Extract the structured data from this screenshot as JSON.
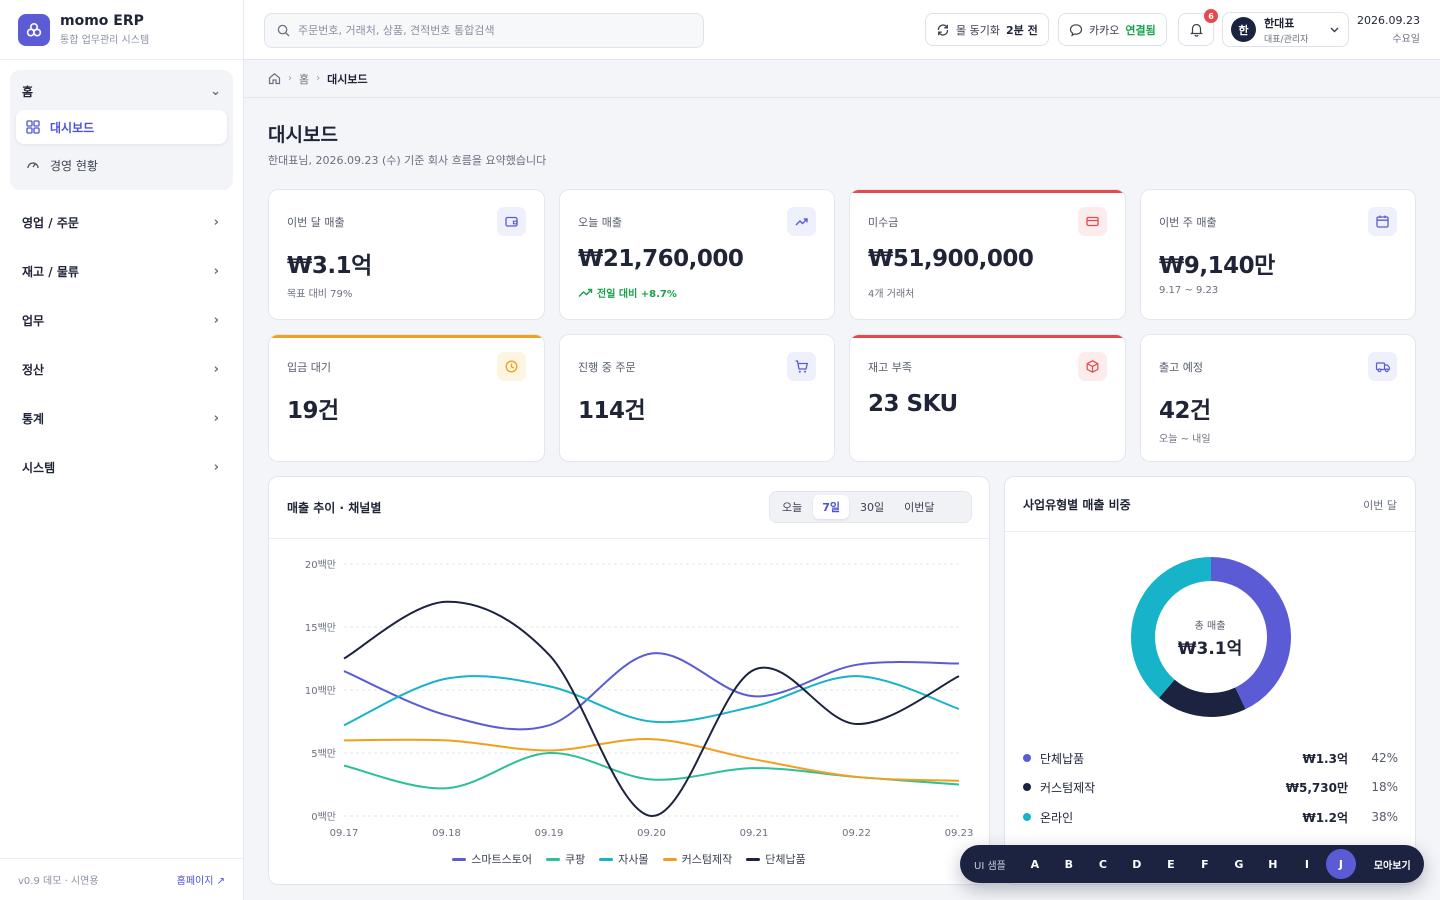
{
  "brand": {
    "name": "momo ERP",
    "subtitle": "통합 업무관리 시스템"
  },
  "sidebar": {
    "home_group": {
      "label": "홈",
      "items": [
        {
          "label": "대시보드",
          "active": true
        },
        {
          "label": "경영 현황",
          "active": false
        }
      ]
    },
    "groups": [
      {
        "label": "영업 / 주문"
      },
      {
        "label": "재고 / 물류"
      },
      {
        "label": "업무"
      },
      {
        "label": "정산"
      },
      {
        "label": "통계"
      },
      {
        "label": "시스템"
      }
    ],
    "footer": {
      "version": "v0.9 데모 · 시연용",
      "homepage": "홈페이지 ↗"
    }
  },
  "topbar": {
    "search_placeholder": "주문번호, 거래처, 상품, 견적번호 통합검색",
    "sync": {
      "label": "몰 동기화",
      "value": "2분 전"
    },
    "kakao": {
      "label": "카카오",
      "value": "연결됨"
    },
    "notifications": "6",
    "user": {
      "initial": "한",
      "name": "한대표",
      "role": "대표/관리자"
    },
    "date": "2026.09.23",
    "weekday": "수요일"
  },
  "breadcrumb": {
    "home": "홈",
    "current": "대시보드"
  },
  "page": {
    "title": "대시보드",
    "subtitle": "한대표님, 2026.09.23 (수) 기준 회사 흐름을 요약했습니다"
  },
  "kpis": [
    {
      "label": "이번 달 매출",
      "value": "₩3.1억",
      "sub": "목표 대비 79%",
      "icon": "wallet-icon",
      "color": "#5b5bd6",
      "bg": "#eef0fb"
    },
    {
      "label": "오늘 매출",
      "value": "₩21,760,000",
      "sub": "전일 대비 +8.7%",
      "icon": "trend-up-icon",
      "color": "#5b5bd6",
      "bg": "#eef0fb"
    },
    {
      "label": "미수금",
      "value": "₩51,900,000",
      "sub": "4개 거래처",
      "icon": "card-icon",
      "color": "#e5484d",
      "bg": "#fdecec"
    },
    {
      "label": "이번 주 매출",
      "value": "₩9,140만",
      "sub": "9.17 ~ 9.23",
      "icon": "calendar-icon",
      "color": "#5b5bd6",
      "bg": "#eef0fb"
    },
    {
      "label": "입금 대기",
      "value": "19건",
      "sub": "",
      "icon": "clock-icon",
      "color": "#e8a317",
      "bg": "#fdf4e2"
    },
    {
      "label": "진행 중 주문",
      "value": "114건",
      "sub": "",
      "icon": "cart-icon",
      "color": "#5b5bd6",
      "bg": "#eef0fb"
    },
    {
      "label": "재고 부족",
      "value": "23 SKU",
      "sub": "",
      "icon": "box-icon",
      "color": "#e5484d",
      "bg": "#fdecec"
    },
    {
      "label": "출고 예정",
      "value": "42건",
      "sub": "오늘 ~ 내일",
      "icon": "truck-icon",
      "color": "#5b5bd6",
      "bg": "#eef0fb"
    }
  ],
  "sales_panel": {
    "title": "매출 추이 · 채널별",
    "tabs": [
      {
        "label": "오늘",
        "active": false
      },
      {
        "label": "7일",
        "active": true
      },
      {
        "label": "30일",
        "active": false
      },
      {
        "label": "이번달",
        "active": false
      }
    ]
  },
  "biz_panel": {
    "title": "사업유형별 매출 비중",
    "period": "이번 달",
    "center_label": "총 매출",
    "center_value": "₩3.1억",
    "rows": [
      {
        "name": "단체납품",
        "amount": "₩1.3억",
        "pct": "42%",
        "color": "#5b5bd6"
      },
      {
        "name": "커스텀제작",
        "amount": "₩5,730만",
        "pct": "18%",
        "color": "#1c2340"
      },
      {
        "name": "온라인",
        "amount": "₩1.2억",
        "pct": "38%",
        "color": "#17b3c9"
      }
    ]
  },
  "sample_bar": {
    "label": "UI 샘플",
    "letters": [
      "A",
      "B",
      "C",
      "D",
      "E",
      "F",
      "G",
      "H",
      "I",
      "J"
    ],
    "active": "J",
    "all": "모아보기"
  },
  "chart_data": [
    {
      "type": "line",
      "title": "매출 추이 · 채널별",
      "x": [
        "09.17",
        "09.18",
        "09.19",
        "09.20",
        "09.21",
        "09.22",
        "09.23"
      ],
      "ylim": [
        0,
        20
      ],
      "yticks": [
        "0백만",
        "5백만",
        "10백만",
        "15백만",
        "20백만"
      ],
      "grid": true,
      "legend": "bottom",
      "series": [
        {
          "name": "스마트스토어",
          "color": "#5b5bd6",
          "values": [
            11.5,
            8.0,
            7.2,
            12.9,
            9.5,
            12.0,
            12.1
          ]
        },
        {
          "name": "쿠팡",
          "color": "#2bbf9a",
          "values": [
            4.0,
            2.2,
            5.0,
            2.9,
            3.8,
            3.1,
            2.5
          ]
        },
        {
          "name": "자사몰",
          "color": "#17b3c9",
          "values": [
            7.2,
            10.9,
            10.3,
            7.5,
            8.7,
            11.1,
            8.5
          ]
        },
        {
          "name": "커스텀제작",
          "color": "#f0a020",
          "values": [
            6.0,
            6.0,
            5.2,
            6.1,
            4.5,
            3.1,
            2.8
          ]
        },
        {
          "name": "단체납품",
          "color": "#1c2340",
          "values": [
            12.5,
            17.0,
            12.8,
            0.0,
            11.6,
            7.3,
            11.1
          ]
        }
      ]
    },
    {
      "type": "pie",
      "title": "사업유형별 매출 비중",
      "categories": [
        "단체납품",
        "커스텀제작",
        "온라인"
      ],
      "values": [
        42,
        18,
        38
      ],
      "colors": [
        "#5b5bd6",
        "#1c2340",
        "#17b3c9"
      ]
    }
  ]
}
